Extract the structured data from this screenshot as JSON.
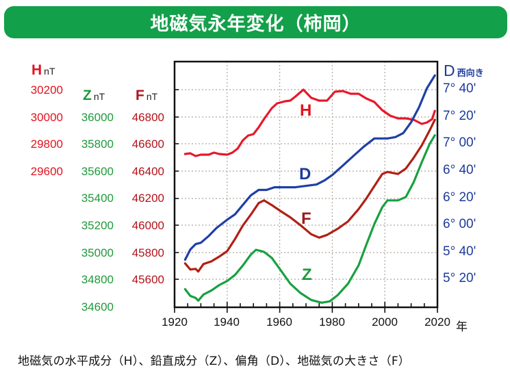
{
  "title": "地磁気永年変化（柿岡）",
  "caption": "地磁気の水平成分（H）、鉛直成分（Z）、偏角（D）、地磁気の大きさ（F）",
  "axes": {
    "h": {
      "name": "H",
      "unit": "nT",
      "ticks": [
        "30200",
        "30000",
        "29800",
        "29600"
      ]
    },
    "z": {
      "name": "Z",
      "unit": "nT",
      "ticks": [
        "36000",
        "35800",
        "35600",
        "35400",
        "35200",
        "35000",
        "34800",
        "34600"
      ]
    },
    "f": {
      "name": "F",
      "unit": "nT",
      "ticks": [
        "46800",
        "46600",
        "46400",
        "46200",
        "46000",
        "45800",
        "45600"
      ]
    },
    "d": {
      "name": "D",
      "unit": "西向き",
      "ticks": [
        "7° 40'",
        "7° 20'",
        "7° 00'",
        "6° 40'",
        "6° 20'",
        "6° 00'",
        "5° 40'",
        "5° 20'"
      ]
    },
    "x": {
      "ticks": [
        "1920",
        "1940",
        "1960",
        "1980",
        "2000",
        "2020"
      ],
      "unit": "年"
    }
  },
  "colors": {
    "H": "#e2121f",
    "Z": "#1f9a3a",
    "F": "#b3121a",
    "D": "#1c3a9a",
    "title_bg": "#13a04a",
    "grid": "#b0a59a"
  },
  "chart_data": {
    "type": "line",
    "title": "地磁気永年変化（柿岡）",
    "xlabel": "年",
    "xlim": [
      1920,
      2020
    ],
    "x_ticks": [
      1920,
      1940,
      1960,
      1980,
      2000,
      2020
    ],
    "grid": true,
    "series": [
      {
        "name": "H",
        "label": "地磁気の水平成分",
        "unit": "nT",
        "axis": "left-1",
        "ylim": [
          29515,
          30435
        ],
        "points": [
          [
            1924,
            29730
          ],
          [
            1926,
            29735
          ],
          [
            1928,
            29715
          ],
          [
            1930,
            29725
          ],
          [
            1933,
            29725
          ],
          [
            1935,
            29740
          ],
          [
            1937,
            29730
          ],
          [
            1940,
            29725
          ],
          [
            1942,
            29740
          ],
          [
            1944,
            29770
          ],
          [
            1946,
            29830
          ],
          [
            1948,
            29865
          ],
          [
            1950,
            29875
          ],
          [
            1952,
            29925
          ],
          [
            1954,
            29985
          ],
          [
            1957,
            30065
          ],
          [
            1959,
            30100
          ],
          [
            1962,
            30115
          ],
          [
            1964,
            30120
          ],
          [
            1966,
            30150
          ],
          [
            1969,
            30200
          ],
          [
            1972,
            30140
          ],
          [
            1975,
            30120
          ],
          [
            1978,
            30120
          ],
          [
            1981,
            30185
          ],
          [
            1984,
            30190
          ],
          [
            1987,
            30170
          ],
          [
            1990,
            30170
          ],
          [
            1993,
            30135
          ],
          [
            1996,
            30110
          ],
          [
            1999,
            30050
          ],
          [
            2002,
            30010
          ],
          [
            2005,
            29990
          ],
          [
            2008,
            29990
          ],
          [
            2011,
            29980
          ],
          [
            2014,
            29950
          ],
          [
            2016,
            29960
          ],
          [
            2018,
            29985
          ],
          [
            2019,
            30045
          ]
        ]
      },
      {
        "name": "Z",
        "label": "鉛直成分",
        "unit": "nT",
        "axis": "left-2",
        "ylim": [
          34600,
          36000
        ],
        "points": [
          [
            1924,
            34730
          ],
          [
            1926,
            34680
          ],
          [
            1928,
            34665
          ],
          [
            1929,
            34645
          ],
          [
            1931,
            34690
          ],
          [
            1934,
            34720
          ],
          [
            1937,
            34760
          ],
          [
            1940,
            34790
          ],
          [
            1943,
            34835
          ],
          [
            1946,
            34905
          ],
          [
            1949,
            34985
          ],
          [
            1951,
            35020
          ],
          [
            1954,
            35005
          ],
          [
            1957,
            34960
          ],
          [
            1960,
            34880
          ],
          [
            1964,
            34770
          ],
          [
            1968,
            34700
          ],
          [
            1972,
            34650
          ],
          [
            1976,
            34630
          ],
          [
            1979,
            34640
          ],
          [
            1982,
            34685
          ],
          [
            1986,
            34770
          ],
          [
            1990,
            34905
          ],
          [
            1993,
            35060
          ],
          [
            1996,
            35210
          ],
          [
            1999,
            35335
          ],
          [
            2001,
            35385
          ],
          [
            2005,
            35385
          ],
          [
            2008,
            35410
          ],
          [
            2011,
            35520
          ],
          [
            2014,
            35665
          ],
          [
            2017,
            35800
          ],
          [
            2019,
            35865
          ]
        ]
      },
      {
        "name": "F",
        "label": "地磁気の大きさ",
        "unit": "nT",
        "axis": "left-3",
        "ylim": [
          45470,
          46870
        ],
        "points": [
          [
            1924,
            45720
          ],
          [
            1926,
            45675
          ],
          [
            1928,
            45680
          ],
          [
            1929,
            45660
          ],
          [
            1931,
            45715
          ],
          [
            1934,
            45735
          ],
          [
            1937,
            45770
          ],
          [
            1940,
            45810
          ],
          [
            1943,
            45900
          ],
          [
            1946,
            46000
          ],
          [
            1949,
            46080
          ],
          [
            1952,
            46165
          ],
          [
            1954,
            46185
          ],
          [
            1957,
            46150
          ],
          [
            1960,
            46110
          ],
          [
            1964,
            46060
          ],
          [
            1968,
            46000
          ],
          [
            1972,
            45935
          ],
          [
            1975,
            45910
          ],
          [
            1978,
            45930
          ],
          [
            1982,
            45975
          ],
          [
            1986,
            46030
          ],
          [
            1990,
            46120
          ],
          [
            1993,
            46200
          ],
          [
            1996,
            46290
          ],
          [
            1999,
            46380
          ],
          [
            2001,
            46395
          ],
          [
            2005,
            46380
          ],
          [
            2008,
            46420
          ],
          [
            2011,
            46500
          ],
          [
            2014,
            46590
          ],
          [
            2017,
            46700
          ],
          [
            2019,
            46780
          ]
        ]
      },
      {
        "name": "D",
        "label": "偏角（西向き）",
        "unit": "arcmin",
        "axis": "right",
        "ylim": [
          300,
          475
        ],
        "points": [
          [
            1924,
            334.5
          ],
          [
            1926,
            342
          ],
          [
            1928,
            346
          ],
          [
            1930,
            347
          ],
          [
            1933,
            352
          ],
          [
            1936,
            358
          ],
          [
            1940,
            364
          ],
          [
            1943,
            368
          ],
          [
            1946,
            375
          ],
          [
            1949,
            382
          ],
          [
            1952,
            386
          ],
          [
            1955,
            386
          ],
          [
            1958,
            388
          ],
          [
            1962,
            388
          ],
          [
            1966,
            388
          ],
          [
            1970,
            389
          ],
          [
            1974,
            390
          ],
          [
            1977,
            393
          ],
          [
            1980,
            397
          ],
          [
            1984,
            404
          ],
          [
            1988,
            411
          ],
          [
            1992,
            418
          ],
          [
            1996,
            424
          ],
          [
            1998,
            424
          ],
          [
            2001,
            424
          ],
          [
            2004,
            425
          ],
          [
            2007,
            428
          ],
          [
            2010,
            436
          ],
          [
            2013,
            447
          ],
          [
            2016,
            461
          ],
          [
            2019,
            470.5
          ]
        ]
      }
    ],
    "labels_in_plot": [
      "H",
      "D",
      "F",
      "Z"
    ]
  }
}
